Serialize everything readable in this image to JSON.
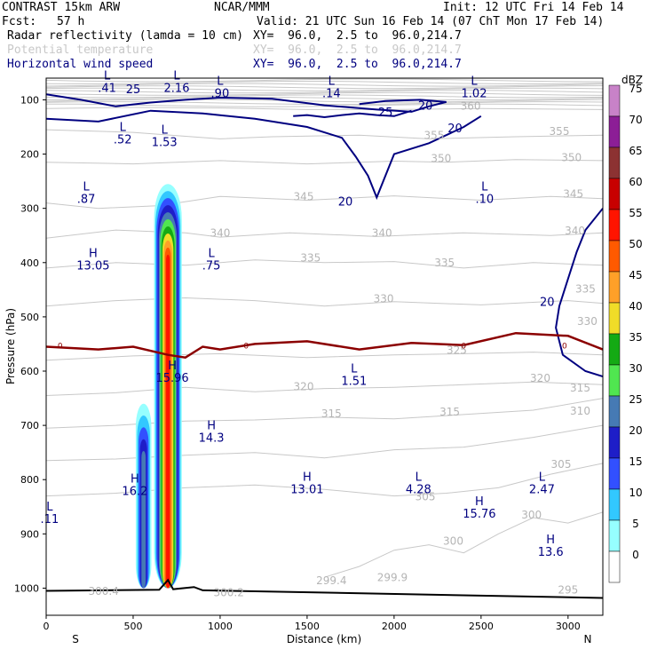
{
  "header": {
    "model": "CONTRAST 15km ARW",
    "org": "NCAR/MMM",
    "init": "Init: 12 UTC Fri 14 Feb 14",
    "fcst_label": "Fcst:",
    "fcst_value": "57 h",
    "valid": "Valid: 21 UTC Sun 16 Feb 14 (07 ChT Mon 17 Feb 14)",
    "fields": [
      {
        "name": "Radar reflectivity (lamda = 10 cm)",
        "xy": "XY=  96.0,  2.5 to  96.0,214.7",
        "color": "#000000"
      },
      {
        "name": "Potential temperature",
        "xy": "XY=  96.0,  2.5 to  96.0,214.7",
        "color": "#c8c8c8"
      },
      {
        "name": "Horizontal wind speed",
        "xy": "XY=  96.0,  2.5 to  96.0,214.7",
        "color": "#000080"
      }
    ]
  },
  "chart_data": {
    "type": "cross-section",
    "xlabel": "Distance (km)",
    "ylabel": "Pressure (hPa)",
    "xlim": [
      0,
      3200
    ],
    "ylim": [
      1050,
      60
    ],
    "x_ticks": [
      0,
      500,
      1000,
      1500,
      2000,
      2500,
      3000
    ],
    "y_ticks": [
      100,
      200,
      300,
      400,
      500,
      600,
      700,
      800,
      900,
      1000
    ],
    "x_end_labels": {
      "left": "S",
      "right": "N"
    },
    "colorbar": {
      "unit": "dBZ",
      "levels": [
        0,
        5,
        10,
        15,
        20,
        25,
        30,
        35,
        40,
        45,
        50,
        55,
        60,
        65,
        70,
        75
      ],
      "colors": [
        "#ffffff",
        "#96ffff",
        "#32c8ff",
        "#3250ff",
        "#1e1ec8",
        "#467ab4",
        "#50e650",
        "#14aa14",
        "#f0dc28",
        "#ffa028",
        "#ff5a00",
        "#ff1400",
        "#c80000",
        "#8c3232",
        "#8c1e96",
        "#c882c8"
      ]
    },
    "reflectivity_cells": [
      {
        "x_center": 560,
        "p_top": 660,
        "p_bottom": 1000,
        "max_dbz": 25
      },
      {
        "x_center": 700,
        "p_top": 255,
        "p_bottom": 1000,
        "max_dbz": 55
      }
    ],
    "theta_labels": [
      {
        "value": "360",
        "x": 2440,
        "p": 118
      },
      {
        "value": "355",
        "x": 2230,
        "p": 172
      },
      {
        "value": "355",
        "x": 2950,
        "p": 165
      },
      {
        "value": "350",
        "x": 2270,
        "p": 215
      },
      {
        "value": "350",
        "x": 3020,
        "p": 213
      },
      {
        "value": "345",
        "x": 1480,
        "p": 285
      },
      {
        "value": "345",
        "x": 3030,
        "p": 280
      },
      {
        "value": "340",
        "x": 1000,
        "p": 352
      },
      {
        "value": "340",
        "x": 1930,
        "p": 352
      },
      {
        "value": "340",
        "x": 3040,
        "p": 348
      },
      {
        "value": "335",
        "x": 1520,
        "p": 398
      },
      {
        "value": "335",
        "x": 2290,
        "p": 407
      },
      {
        "value": "335",
        "x": 3100,
        "p": 455
      },
      {
        "value": "330",
        "x": 1940,
        "p": 473
      },
      {
        "value": "330",
        "x": 3110,
        "p": 515
      },
      {
        "value": "325",
        "x": 2360,
        "p": 568
      },
      {
        "value": "320",
        "x": 1480,
        "p": 635
      },
      {
        "value": "320",
        "x": 2840,
        "p": 620
      },
      {
        "value": "315",
        "x": 1640,
        "p": 685
      },
      {
        "value": "315",
        "x": 2320,
        "p": 682
      },
      {
        "value": "315",
        "x": 3070,
        "p": 638
      },
      {
        "value": "310",
        "x": 3070,
        "p": 680
      },
      {
        "value": "305",
        "x": 2960,
        "p": 778
      },
      {
        "value": "305",
        "x": 2180,
        "p": 838
      },
      {
        "value": "300",
        "x": 2790,
        "p": 872
      },
      {
        "value": "300",
        "x": 2340,
        "p": 920
      },
      {
        "value": "295",
        "x": 3000,
        "p": 1010
      },
      {
        "value": "300.4",
        "x": 330,
        "p": 1012
      },
      {
        "value": "300.2",
        "x": 1050,
        "p": 1015
      },
      {
        "value": "299.4",
        "x": 1640,
        "p": 993
      },
      {
        "value": "299.9",
        "x": 1990,
        "p": 987
      }
    ],
    "theta_contours": [
      {
        "level": 360,
        "x": [
          0,
          500,
          1000,
          1500,
          2000,
          2500,
          3200
        ],
        "p": [
          116,
          114,
          115,
          118,
          118,
          116,
          118
        ]
      },
      {
        "level": 355,
        "x": [
          0,
          500,
          1000,
          1300,
          1800,
          2200,
          2700,
          3200
        ],
        "p": [
          155,
          160,
          172,
          168,
          165,
          172,
          168,
          165
        ]
      },
      {
        "level": 350,
        "x": [
          0,
          500,
          1000,
          1500,
          2000,
          2300,
          2700,
          3200
        ],
        "p": [
          215,
          218,
          212,
          218,
          213,
          215,
          210,
          212
        ]
      },
      {
        "level": 345,
        "x": [
          0,
          300,
          650,
          1000,
          1500,
          2000,
          2500,
          2900,
          3200
        ],
        "p": [
          290,
          300,
          295,
          278,
          285,
          277,
          285,
          278,
          282
        ]
      },
      {
        "level": 340,
        "x": [
          0,
          400,
          800,
          1000,
          1400,
          1900,
          2400,
          2900,
          3200
        ],
        "p": [
          355,
          340,
          345,
          353,
          345,
          352,
          345,
          350,
          345
        ]
      },
      {
        "level": 335,
        "x": [
          0,
          400,
          800,
          1200,
          1600,
          2000,
          2400,
          2800,
          3200
        ],
        "p": [
          410,
          400,
          405,
          395,
          400,
          398,
          410,
          400,
          405
        ]
      },
      {
        "level": 330,
        "x": [
          0,
          400,
          800,
          1200,
          1600,
          2000,
          2500,
          3000,
          3200
        ],
        "p": [
          480,
          470,
          465,
          470,
          480,
          472,
          478,
          470,
          475
        ]
      },
      {
        "level": 325,
        "x": [
          0,
          500,
          1000,
          1500,
          2000,
          2400,
          2800,
          3200
        ],
        "p": [
          580,
          572,
          568,
          575,
          570,
          568,
          565,
          570
        ]
      },
      {
        "level": 320,
        "x": [
          0,
          400,
          800,
          1200,
          1600,
          2000,
          2400,
          2800,
          3200
        ],
        "p": [
          645,
          640,
          630,
          638,
          632,
          630,
          625,
          620,
          625
        ]
      },
      {
        "level": 315,
        "x": [
          0,
          400,
          800,
          1200,
          1600,
          2000,
          2400,
          2800,
          3200
        ],
        "p": [
          705,
          700,
          692,
          690,
          685,
          688,
          680,
          672,
          650
        ]
      },
      {
        "level": 310,
        "x": [
          0,
          400,
          800,
          1200,
          1600,
          2000,
          2400,
          2800,
          3200
        ],
        "p": [
          765,
          762,
          755,
          750,
          760,
          745,
          740,
          722,
          700
        ]
      },
      {
        "level": 305,
        "x": [
          0,
          400,
          800,
          1200,
          1600,
          2000,
          2300,
          2600,
          2900,
          3200
        ],
        "p": [
          830,
          825,
          815,
          810,
          818,
          830,
          825,
          815,
          790,
          770
        ]
      },
      {
        "level": 300,
        "x": [
          1600,
          1800,
          2000,
          2200,
          2400,
          2600,
          2800,
          3000,
          3200
        ],
        "p": [
          980,
          960,
          930,
          920,
          935,
          900,
          870,
          880,
          860
        ]
      }
    ],
    "freezing_level_contour": {
      "level": 0,
      "x": [
        0,
        300,
        500,
        700,
        800,
        900,
        1000,
        1200,
        1500,
        1800,
        2100,
        2400,
        2700,
        3000,
        3200
      ],
      "p": [
        555,
        560,
        555,
        570,
        575,
        555,
        560,
        550,
        545,
        560,
        548,
        552,
        530,
        535,
        560
      ]
    },
    "wind_contour_labels": [
      {
        "value": "25",
        "x": 500,
        "p": 88
      },
      {
        "value": "20",
        "x": 2180,
        "p": 118
      },
      {
        "value": "20",
        "x": 2350,
        "p": 160
      },
      {
        "value": "25",
        "x": 1950,
        "p": 130
      },
      {
        "value": "20",
        "x": 1720,
        "p": 295
      },
      {
        "value": "20",
        "x": 2880,
        "p": 480
      }
    ],
    "extrema": [
      {
        "type": "L",
        "value": ".41",
        "x": 350,
        "p": 85
      },
      {
        "type": "L",
        "value": "2.16",
        "x": 750,
        "p": 85
      },
      {
        "type": "L",
        "value": ".90",
        "x": 1000,
        "p": 95
      },
      {
        "type": "L",
        "value": ".14",
        "x": 1640,
        "p": 95
      },
      {
        "type": "L",
        "value": "1.02",
        "x": 2460,
        "p": 95
      },
      {
        "type": "L",
        "value": ".52",
        "x": 440,
        "p": 180
      },
      {
        "type": "L",
        "value": "1.53",
        "x": 680,
        "p": 185
      },
      {
        "type": "L",
        "value": ".87",
        "x": 230,
        "p": 290
      },
      {
        "type": "L",
        "value": ".10",
        "x": 2520,
        "p": 290
      },
      {
        "type": "H",
        "value": "13.05",
        "x": 270,
        "p": 413
      },
      {
        "type": "L",
        "value": ".75",
        "x": 950,
        "p": 413
      },
      {
        "type": "H",
        "value": "15.96",
        "x": 725,
        "p": 620
      },
      {
        "type": "L",
        "value": "1.51",
        "x": 1770,
        "p": 625
      },
      {
        "type": "H",
        "value": "14.3",
        "x": 950,
        "p": 730
      },
      {
        "type": "H",
        "value": "16.2",
        "x": 510,
        "p": 828
      },
      {
        "type": "H",
        "value": "13.01",
        "x": 1500,
        "p": 825
      },
      {
        "type": "L",
        "value": "4.28",
        "x": 2140,
        "p": 825
      },
      {
        "type": "H",
        "value": "15.76",
        "x": 2490,
        "p": 870
      },
      {
        "type": "L",
        "value": "2.47",
        "x": 2850,
        "p": 825
      },
      {
        "type": "L",
        "value": ".11",
        "x": 20,
        "p": 880
      },
      {
        "type": "H",
        "value": "13.6",
        "x": 2900,
        "p": 940
      }
    ]
  }
}
